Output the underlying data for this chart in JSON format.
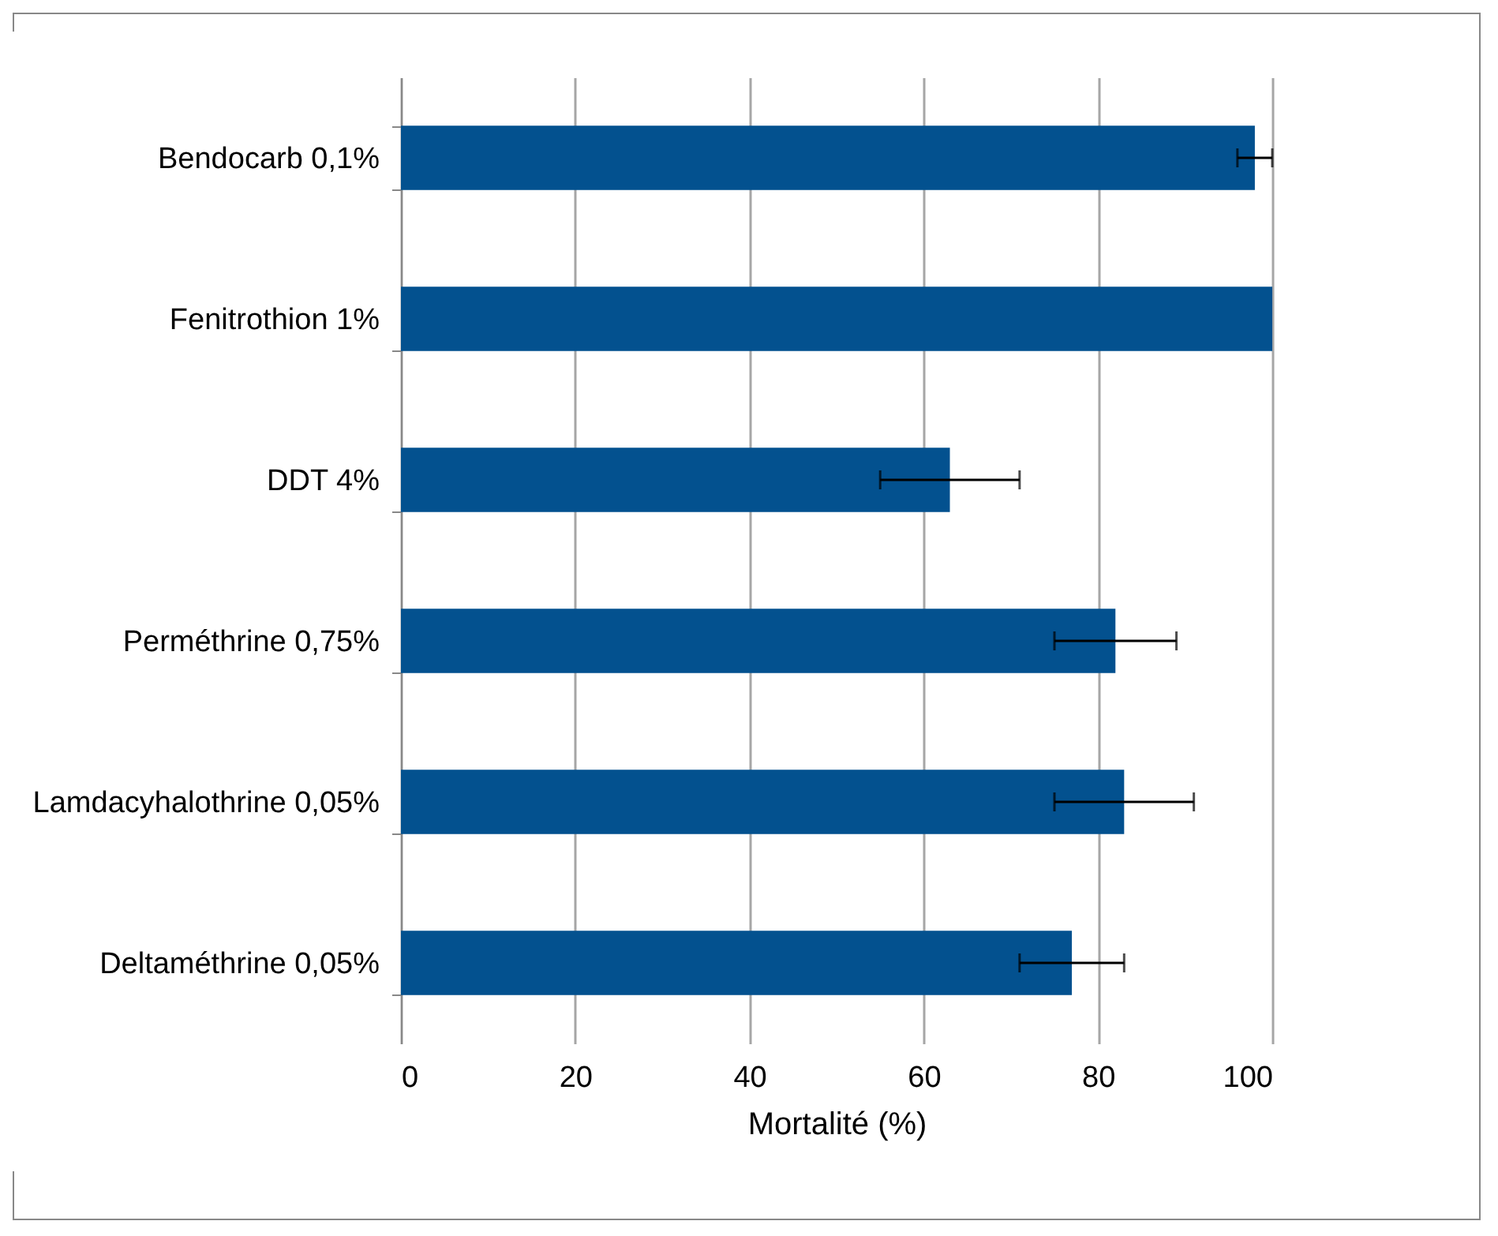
{
  "chart_data": {
    "type": "bar",
    "orientation": "horizontal",
    "xlabel": "Mortalité (%)",
    "categories": [
      "Bendocarb 0,1%",
      "Fenitrothion 1%",
      "DDT 4%",
      "Perméthrine 0,75%",
      "Lamdacyhalothrine 0,05%",
      "Deltaméthrine 0,05%"
    ],
    "values": [
      98,
      100,
      63,
      82,
      83,
      77
    ],
    "errors": [
      [
        96,
        100
      ],
      null,
      8,
      7,
      8,
      6
    ],
    "color": "#03518f",
    "xlim": [
      0,
      100
    ],
    "xticks": [
      0,
      20,
      40,
      60,
      80,
      100
    ],
    "grid": "x"
  }
}
